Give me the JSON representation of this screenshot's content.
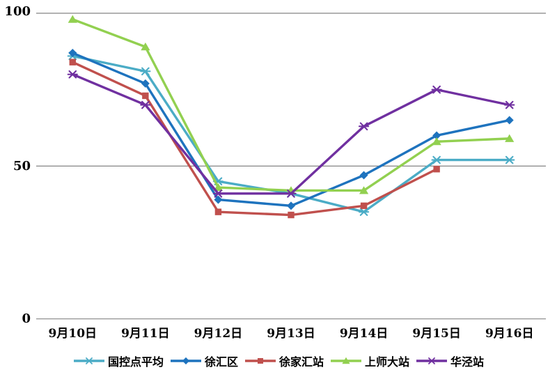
{
  "chart_data": {
    "type": "line",
    "title": "",
    "xlabel": "",
    "ylabel": "",
    "categories": [
      "9月10日",
      "9月11日",
      "9月12日",
      "9月13日",
      "9月14日",
      "9月15日",
      "9月16日"
    ],
    "series": [
      {
        "name": "国控点平均",
        "marker": "star",
        "color": "#4BACC6",
        "values": [
          86,
          81,
          45,
          41,
          35,
          52,
          52
        ]
      },
      {
        "name": "徐汇区",
        "marker": "diamond",
        "color": "#1E73BE",
        "values": [
          87,
          77,
          39,
          37,
          47,
          60,
          65
        ]
      },
      {
        "name": "徐家汇站",
        "marker": "square",
        "color": "#C0504D",
        "values": [
          84,
          73,
          35,
          34,
          37,
          49,
          null
        ]
      },
      {
        "name": "上师大站",
        "marker": "triangle",
        "color": "#92D050",
        "values": [
          98,
          89,
          43,
          42,
          42,
          58,
          59
        ]
      },
      {
        "name": "华泾站",
        "marker": "star",
        "color": "#7030A0",
        "values": [
          80,
          70,
          41,
          41,
          63,
          75,
          70
        ]
      }
    ],
    "ylim": [
      0,
      100
    ],
    "y_ticks": [
      100,
      50,
      0
    ],
    "y_tick_labels": [
      "100",
      "50",
      "0"
    ],
    "grid": true,
    "gridline_color": "#858585",
    "text_color": "#000000",
    "legend_position": "bottom"
  }
}
